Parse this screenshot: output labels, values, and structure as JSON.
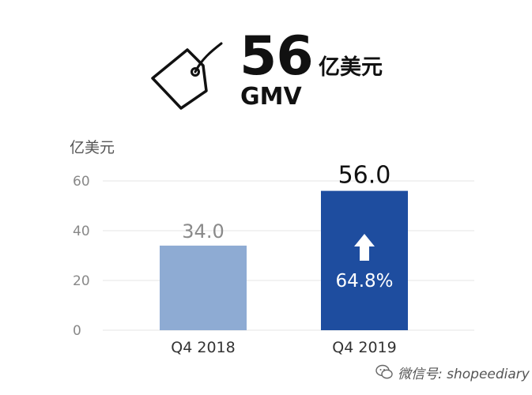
{
  "header": {
    "value": "56",
    "unit": "亿美元",
    "metric": "GMV"
  },
  "watermark": {
    "text": "微信号: shopeediary"
  },
  "colors": {
    "bar_2018": "#8eabd3",
    "bar_2019": "#1e4d9f",
    "grid": "#e6e6e6",
    "axis_text": "#888888",
    "label_2018": "#8a8a8a",
    "label_2019": "#111111"
  },
  "chart_data": {
    "type": "bar",
    "title": "",
    "ylabel": "亿美元",
    "xlabel": "",
    "ylim": [
      0,
      60
    ],
    "yticks": [
      0,
      20,
      40,
      60
    ],
    "grid": true,
    "categories": [
      "Q4 2018",
      "Q4 2019"
    ],
    "values": [
      34.0,
      56.0
    ],
    "data_labels": [
      "34.0",
      "56.0"
    ],
    "annotations": [
      {
        "category": "Q4 2019",
        "icon": "arrow-up-icon",
        "text": "64.8%"
      }
    ]
  }
}
